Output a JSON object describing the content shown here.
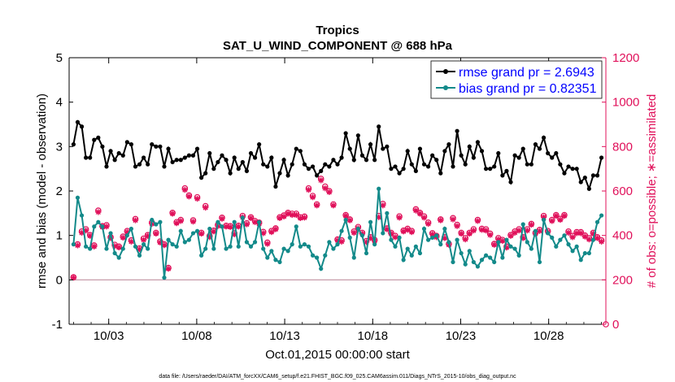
{
  "chart_data": {
    "type": "line",
    "title": "Tropics",
    "subtitle": "SAT_U_WIND_COMPONENT @ 688 hPa",
    "xlabel": "Oct.01,2015 00:00:00 start",
    "ylabel_left": "rmse and bias (model - observation)",
    "ylabel_right": "# of obs: o=possible; ∗=assimilated",
    "footer": "data file: /Users/raeder/DAI/ATM_forcXX/CAM6_setup/f.e21.FHIST_BGC.f09_025.CAM6assim.011/Diags_NTrS_2015-10/obs_diag_output.nc",
    "x_range_days": [
      0.75,
      31.25
    ],
    "x_ticks": [
      {
        "label": "10/03",
        "day": 3
      },
      {
        "label": "10/08",
        "day": 8
      },
      {
        "label": "10/13",
        "day": 13
      },
      {
        "label": "10/18",
        "day": 18
      },
      {
        "label": "10/23",
        "day": 23
      },
      {
        "label": "10/28",
        "day": 28
      }
    ],
    "ylim_left": [
      -1,
      5
    ],
    "yticks_left": [
      "-1",
      "0",
      "1",
      "2",
      "3",
      "4",
      "5"
    ],
    "ylim_right": [
      0,
      1200
    ],
    "yticks_right": [
      "0",
      "200",
      "400",
      "600",
      "800",
      "1000",
      "1200"
    ],
    "zero_line": 0,
    "legend_position": "top-right",
    "colors": {
      "rmse": "#000000",
      "bias": "#138a8a",
      "obs": "#e0105a",
      "zero": "#c090a0",
      "legend_text": "#0000ff"
    },
    "series": [
      {
        "name": "rmse grand pr = 2.6943",
        "values": [
          3.05,
          3.55,
          3.45,
          2.75,
          2.75,
          3.15,
          3.2,
          3.0,
          2.55,
          2.9,
          2.7,
          2.85,
          2.8,
          3.1,
          3.05,
          2.55,
          2.6,
          2.75,
          2.6,
          3.05,
          3.0,
          3.0,
          2.55,
          2.95,
          2.65,
          2.7,
          2.7,
          2.75,
          2.8,
          2.8,
          2.95,
          2.3,
          2.4,
          2.85,
          2.5,
          2.65,
          2.8,
          2.7,
          2.4,
          2.75,
          2.5,
          2.65,
          2.45,
          2.85,
          2.75,
          3.05,
          2.6,
          2.55,
          2.75,
          2.1,
          2.4,
          2.7,
          2.35,
          2.6,
          2.95,
          2.9,
          2.6,
          2.5,
          2.55,
          2.35,
          2.45,
          2.6,
          2.55,
          2.7,
          2.6,
          2.75,
          3.3,
          2.95,
          2.7,
          3.25,
          2.8,
          2.7,
          3.05,
          2.7,
          3.45,
          2.95,
          3.0,
          2.5,
          2.55,
          2.4,
          2.5,
          2.9,
          2.6,
          2.45,
          2.95,
          2.6,
          2.55,
          2.8,
          2.7,
          2.4,
          2.9,
          3.05,
          2.55,
          3.35,
          2.8,
          2.6,
          3.0,
          2.75,
          3.1,
          2.9,
          2.5,
          2.5,
          2.55,
          2.85,
          2.35,
          2.45,
          2.2,
          2.8,
          2.75,
          2.95,
          2.6,
          2.6,
          3.05,
          2.95,
          3.2,
          2.85,
          2.75,
          2.85,
          2.6,
          2.4,
          2.55,
          2.5,
          2.5,
          2.2,
          2.3,
          2.05,
          2.35,
          2.35,
          2.75
        ]
      },
      {
        "name": "bias grand pr = 0.82351",
        "values": [
          0.8,
          1.85,
          1.45,
          0.75,
          0.7,
          1.2,
          1.3,
          1.2,
          0.7,
          1.05,
          0.6,
          0.5,
          0.7,
          1.0,
          1.15,
          0.75,
          0.55,
          0.8,
          0.7,
          1.35,
          1.25,
          1.3,
          0.05,
          0.9,
          0.8,
          0.75,
          1.1,
          0.85,
          0.9,
          1.05,
          1.1,
          0.55,
          0.7,
          1.15,
          0.7,
          1.3,
          1.2,
          0.7,
          0.75,
          1.3,
          0.75,
          1.4,
          0.85,
          0.75,
          0.85,
          1.3,
          0.7,
          0.5,
          0.65,
          0.45,
          0.4,
          0.7,
          0.65,
          0.8,
          1.2,
          0.75,
          0.8,
          0.75,
          0.55,
          0.5,
          0.25,
          0.55,
          0.85,
          0.7,
          0.8,
          1.1,
          1.35,
          0.95,
          0.5,
          1.15,
          1.0,
          0.6,
          1.3,
          0.8,
          2.05,
          1.05,
          1.5,
          0.9,
          0.75,
          0.95,
          0.45,
          0.7,
          0.55,
          0.75,
          0.6,
          1.15,
          0.9,
          0.95,
          1.0,
          0.8,
          1.15,
          0.85,
          0.4,
          0.9,
          0.6,
          0.35,
          0.65,
          0.4,
          0.3,
          0.45,
          0.55,
          0.5,
          0.4,
          0.85,
          0.5,
          0.9,
          0.75,
          0.7,
          0.55,
          1.25,
          0.85,
          0.7,
          1.1,
          0.4,
          1.35,
          1.05,
          0.95,
          0.75,
          0.9,
          1.0,
          0.8,
          0.65,
          0.75,
          0.45,
          0.6,
          0.6,
          0.9,
          1.3,
          1.45
        ]
      },
      {
        "name": "obs possible",
        "marker": "circle",
        "values": [
          212,
          360,
          418,
          428,
          402,
          355,
          512,
          442,
          446,
          392,
          358,
          350,
          395,
          420,
          378,
          474,
          342,
          386,
          402,
          458,
          412,
          373,
          360,
          254,
          502,
          460,
          470,
          612,
          580,
          468,
          572,
          412,
          532,
          398,
          422,
          448,
          480,
          444,
          442,
          410,
          444,
          488,
          455,
          482,
          465,
          458,
          416,
          368,
          420,
          432,
          482,
          490,
          502,
          498,
          498,
          482,
          485,
          612,
          578,
          540,
          655,
          620,
          600,
          540,
          382,
          378,
          492,
          472,
          418,
          438,
          412,
          375,
          392,
          380,
          488,
          542,
          432,
          412,
          398,
          486,
          422,
          430,
          420,
          518,
          502,
          486,
          458,
          410,
          398,
          472,
          392,
          362,
          478,
          448,
          412,
          388,
          412,
          428,
          470,
          430,
          428,
          408,
          362,
          388,
          380,
          350,
          402,
          418,
          428,
          392,
          428,
          452,
          412,
          425,
          488,
          420,
          470,
          492,
          475,
          492,
          418,
          398,
          415,
          415,
          400,
          388,
          412,
          392,
          378
        ]
      },
      {
        "name": "obs assimilated",
        "marker": "asterisk",
        "values": [
          210,
          355,
          412,
          422,
          398,
          350,
          505,
          438,
          440,
          388,
          352,
          346,
          390,
          415,
          372,
          468,
          338,
          380,
          398,
          452,
          408,
          368,
          356,
          250,
          498,
          455,
          465,
          605,
          575,
          462,
          565,
          408,
          525,
          392,
          418,
          442,
          475,
          440,
          438,
          405,
          440,
          482,
          450,
          478,
          460,
          452,
          410,
          362,
          415,
          428,
          478,
          485,
          498,
          492,
          492,
          478,
          480,
          605,
          572,
          535,
          648,
          612,
          595,
          535,
          378,
          372,
          488,
          468,
          412,
          432,
          408,
          370,
          388,
          375,
          482,
          535,
          428,
          408,
          392,
          480,
          418,
          425,
          415,
          512,
          498,
          480,
          452,
          405,
          392,
          468,
          388,
          358,
          472,
          442,
          408,
          382,
          408,
          422,
          465,
          425,
          422,
          402,
          358,
          382,
          375,
          345,
          398,
          412,
          422,
          388,
          422,
          448,
          408,
          420,
          482,
          415,
          465,
          488,
          470,
          488,
          412,
          392,
          410,
          410,
          395,
          382,
          408,
          388,
          372
        ]
      }
    ]
  }
}
